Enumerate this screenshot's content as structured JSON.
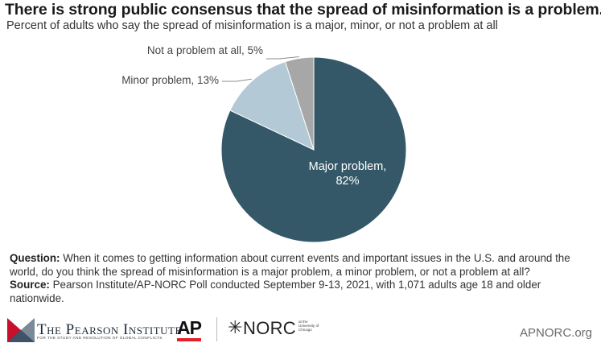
{
  "chart_data": {
    "type": "pie",
    "title": "There is strong public consensus that the spread of misinformation is a problem.",
    "subtitle": "Percent of adults who say the spread of misinformation is a major, minor, or not a problem at all",
    "slices": [
      {
        "label": "Major problem, 82%",
        "label_lines": [
          "Major problem,",
          "82%"
        ],
        "value": 82,
        "color": "#345868"
      },
      {
        "label": "Minor problem, 13%",
        "value": 13,
        "color": "#b3c9d6"
      },
      {
        "label": "Not a problem at all, 5%",
        "value": 5,
        "color": "#a7a7a7"
      }
    ]
  },
  "notes": {
    "question_label": "Question:",
    "question_text": " When it comes to getting information about current events and important issues in the U.S. and around the world, do you think the spread of misinformation is a major problem, a minor problem, or not a problem at all?",
    "source_label": "Source:",
    "source_text": " Pearson Institute/AP-NORC Poll conducted September 9-13, 2021, with 1,071 adults age 18 and older nationwide."
  },
  "footer": {
    "pearson_name": "The Pearson Institute",
    "pearson_tagline": "FOR THE STUDY AND RESOLUTION OF GLOBAL CONFLICTS",
    "ap_logo": "AP",
    "norc_logo": "NORC",
    "norc_sub": "at the University of Chicago",
    "site": "APNORC.org"
  }
}
